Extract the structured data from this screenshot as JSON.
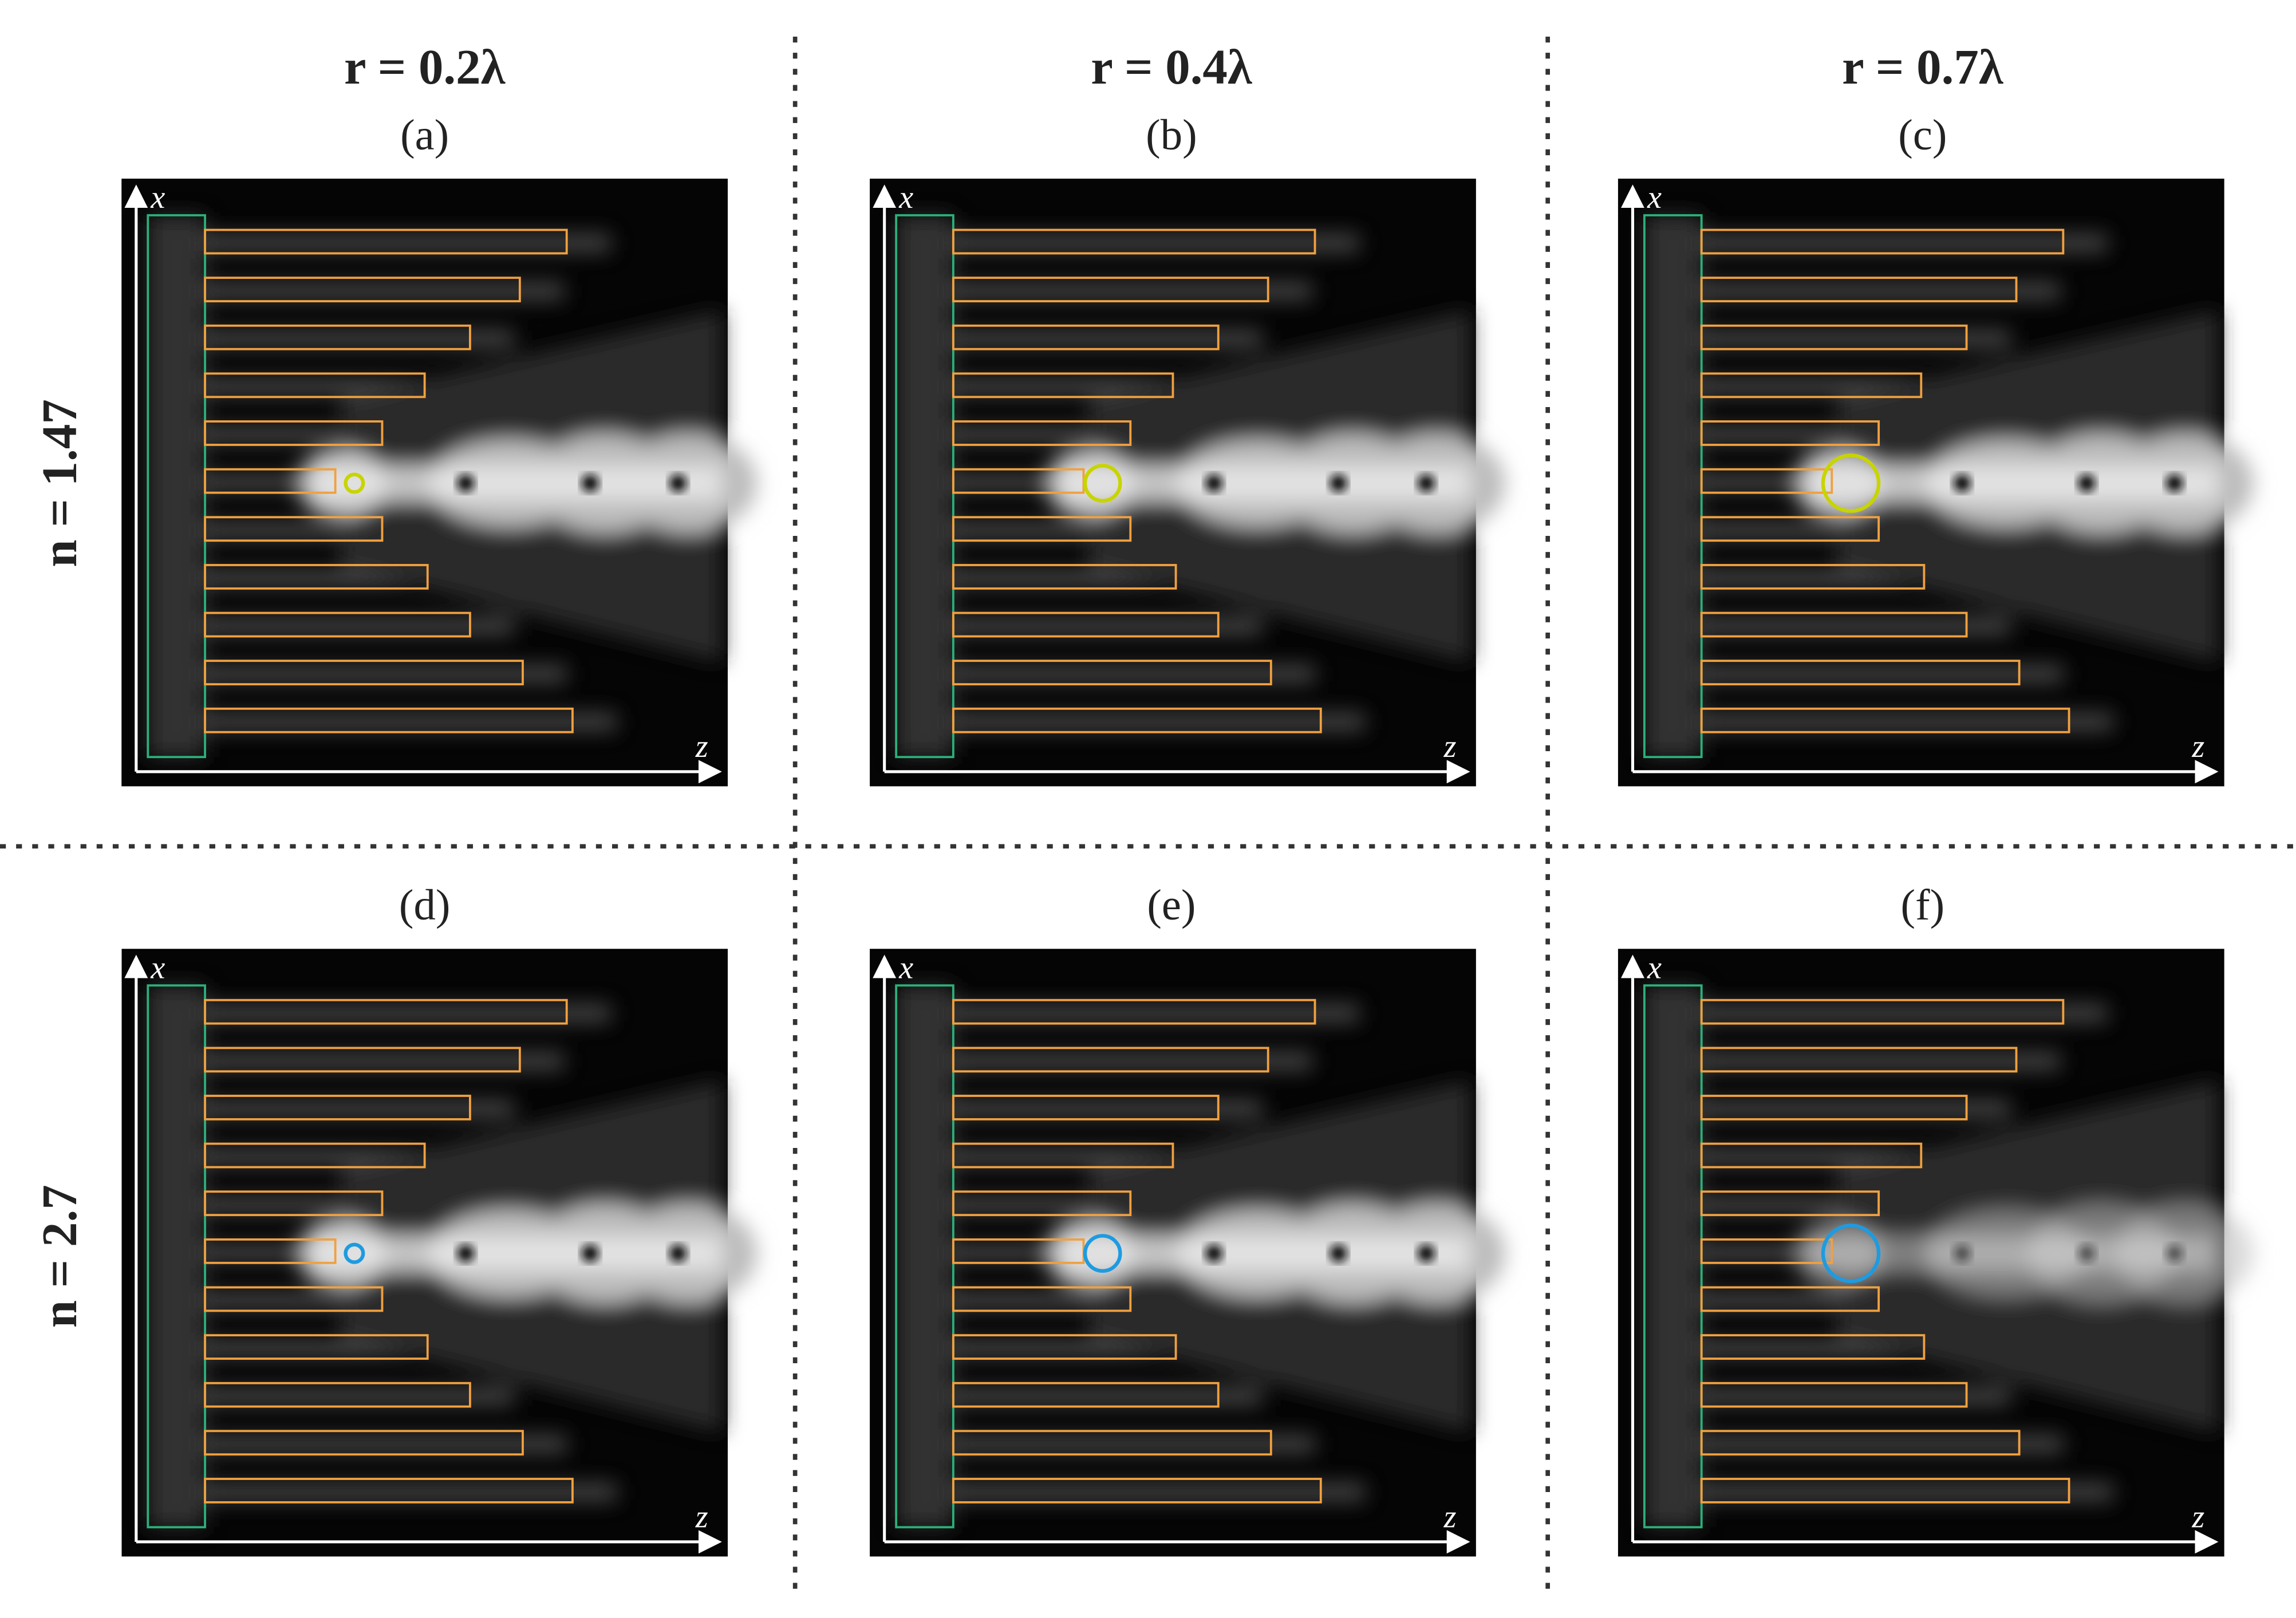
{
  "columns": [
    "r = 0.2λ",
    "r = 0.4λ",
    "r = 0.7λ"
  ],
  "rows": [
    "n = 1.47",
    "n = 2.7"
  ],
  "panels": [
    "(a)",
    "(b)",
    "(c)",
    "(d)",
    "(e)",
    "(f)"
  ],
  "axis_labels": {
    "x": "x",
    "z": "z"
  }
}
